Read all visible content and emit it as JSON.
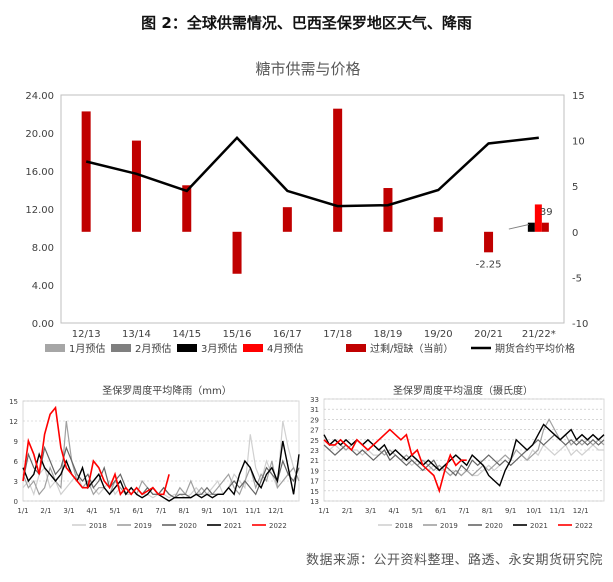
{
  "figure_title": "图 2：全球供需情况、巴西圣保罗地区天气、降雨",
  "source_note": "数据来源：公开资料整理、路透、永安期货研究院",
  "colors": {
    "dark_red": "#c00000",
    "red": "#ff0000",
    "black": "#000000",
    "gray1": "#a6a6a6",
    "gray2": "#7f7f7f",
    "light": "#d0d0d0",
    "mid": "#a0a0a0",
    "dark": "#666666"
  },
  "chart_data": [
    {
      "type": "bar",
      "title": "糖市供需与价格",
      "categories": [
        "12/13",
        "13/14",
        "14/15",
        "15/16",
        "16/17",
        "17/18",
        "18/19",
        "19/20",
        "20/21",
        "21/22*"
      ],
      "left_axis": {
        "ticks": [
          "0.00",
          "4.00",
          "8.00",
          "12.00",
          "16.00",
          "20.00",
          "24.00"
        ],
        "ylim": [
          0,
          24
        ]
      },
      "right_axis": {
        "ticks": [
          "-10",
          "-5",
          "0",
          "5",
          "10",
          "15"
        ],
        "ylim": [
          -10,
          15
        ]
      },
      "legend": [
        "1月预估",
        "2月预估",
        "3月预估",
        "4月预估",
        "过剩/短缺（当前）",
        "期货合约平均价格"
      ],
      "series": [
        {
          "name": "过剩/短缺（当前）",
          "axis": "right",
          "values": [
            13.2,
            10.0,
            5.1,
            -4.6,
            2.7,
            13.5,
            4.8,
            1.6,
            -2.25,
            null
          ]
        },
        {
          "name": "期货合约平均价格",
          "axis": "left",
          "values": [
            17.0,
            15.7,
            13.9,
            19.5,
            13.9,
            12.3,
            12.4,
            14.0,
            18.9,
            19.5
          ]
        },
        {
          "name": "1月预估",
          "axis": "right",
          "values": [
            null,
            null,
            null,
            null,
            null,
            null,
            null,
            null,
            null,
            null
          ]
        },
        {
          "name": "2月预估",
          "axis": "right",
          "values": [
            null,
            null,
            null,
            null,
            null,
            null,
            null,
            null,
            null,
            null
          ]
        },
        {
          "name": "3月预估",
          "axis": "right",
          "values": [
            null,
            null,
            null,
            null,
            null,
            null,
            null,
            null,
            null,
            1.0
          ]
        },
        {
          "name": "4月预估",
          "axis": "right",
          "values": [
            null,
            null,
            null,
            null,
            null,
            null,
            null,
            null,
            null,
            3.0
          ]
        },
        {
          "name": "extra-darkred",
          "axis": "right",
          "values": [
            null,
            null,
            null,
            null,
            null,
            null,
            null,
            null,
            null,
            1.0
          ]
        }
      ],
      "annotations": [
        {
          "text": "-2.25",
          "category": "20/21"
        },
        {
          "text": "39",
          "category": "21/22*"
        }
      ]
    },
    {
      "type": "line",
      "title": "圣保罗周度平均降雨（mm）",
      "x_ticks": [
        "1/1",
        "2/1",
        "3/1",
        "4/1",
        "5/1",
        "6/1",
        "7/1",
        "8/1",
        "9/1",
        "10/1",
        "11/1",
        "12/1"
      ],
      "y_ticks": [
        "0",
        "3",
        "6",
        "9",
        "12",
        "15"
      ],
      "ylim": [
        0,
        15
      ],
      "legend": [
        "2018",
        "2019",
        "2020",
        "2021",
        "2022"
      ],
      "series": [
        {
          "name": "2018",
          "values": [
            2,
            3,
            1,
            4,
            5,
            2,
            3,
            1,
            2,
            3,
            4,
            2,
            3,
            2,
            1,
            2,
            3,
            1,
            2,
            1,
            1,
            2,
            1,
            1,
            0.5,
            1,
            1,
            0.5,
            1,
            1,
            0.5,
            1,
            2,
            1,
            1,
            2,
            3,
            1,
            2,
            4,
            3,
            2,
            10,
            5,
            3,
            6,
            4,
            2,
            12,
            8,
            5,
            3
          ]
        },
        {
          "name": "2019",
          "values": [
            4,
            2,
            3,
            1,
            2,
            5,
            3,
            2,
            12,
            6,
            3,
            2,
            3,
            1,
            2,
            2,
            1,
            3,
            2,
            1,
            2,
            1,
            3,
            2,
            1,
            1,
            2,
            1,
            0.5,
            2,
            1,
            3,
            1,
            2,
            1,
            1,
            2,
            3,
            4,
            2,
            1,
            3,
            5,
            2,
            4,
            3,
            6,
            2,
            3,
            4,
            5,
            3
          ]
        },
        {
          "name": "2020",
          "values": [
            3,
            7,
            5,
            4,
            8,
            6,
            4,
            5,
            8,
            6,
            4,
            3,
            4,
            2,
            3,
            5,
            2,
            3,
            4,
            2,
            1,
            2,
            1,
            2,
            1,
            1,
            2,
            1,
            0.5,
            1,
            1,
            0.5,
            1,
            1,
            2,
            1,
            1,
            1,
            2,
            3,
            2,
            3,
            2,
            1,
            3,
            5,
            4,
            3,
            6,
            4,
            3,
            5
          ]
        },
        {
          "name": "2021",
          "values": [
            5,
            3,
            4,
            7,
            5,
            4,
            3,
            4,
            6,
            4,
            3,
            5,
            2,
            3,
            4,
            2,
            1,
            2,
            3,
            1,
            2,
            1,
            0.5,
            1,
            2,
            1,
            0.5,
            0,
            0.5,
            0.5,
            0.5,
            0.5,
            1,
            0.5,
            1,
            0.5,
            1,
            1,
            2,
            1,
            4,
            6,
            5,
            3,
            2,
            4,
            5,
            3,
            9,
            5,
            1,
            7
          ]
        },
        {
          "name": "2022",
          "values": [
            3,
            9,
            7,
            4,
            10,
            13,
            14,
            8,
            5,
            4,
            3,
            2,
            2,
            6,
            5,
            3,
            2,
            4,
            1,
            2,
            1,
            2,
            1,
            1.5,
            2,
            1,
            1,
            4
          ]
        }
      ]
    },
    {
      "type": "line",
      "title": "圣保罗周度平均温度（摄氏度）",
      "x_ticks": [
        "1/1",
        "2/1",
        "3/1",
        "4/1",
        "5/1",
        "6/1",
        "7/1",
        "8/1",
        "9/1",
        "10/1",
        "11/1",
        "12/1"
      ],
      "y_ticks": [
        "13",
        "15",
        "17",
        "19",
        "21",
        "23",
        "25",
        "27",
        "29",
        "31",
        "33"
      ],
      "ylim": [
        13,
        33
      ],
      "legend": [
        "2018",
        "2019",
        "2020",
        "2021",
        "2022"
      ],
      "series": [
        {
          "name": "2018",
          "values": [
            24,
            23,
            24,
            23,
            24,
            23,
            23,
            22,
            23,
            22,
            22,
            23,
            21,
            22,
            21,
            21,
            20,
            21,
            20,
            19,
            20,
            19,
            19,
            18,
            19,
            18,
            19,
            18,
            18,
            19,
            20,
            19,
            20,
            21,
            20,
            21,
            22,
            21,
            23,
            22,
            24,
            23,
            22,
            23,
            24,
            22,
            23,
            22,
            23,
            24,
            23,
            23
          ]
        },
        {
          "name": "2019",
          "values": [
            25,
            24,
            25,
            24,
            23,
            24,
            25,
            24,
            23,
            24,
            23,
            22,
            23,
            22,
            21,
            22,
            21,
            20,
            21,
            20,
            19,
            20,
            19,
            18,
            19,
            18,
            19,
            18,
            19,
            20,
            19,
            20,
            21,
            22,
            21,
            23,
            22,
            21,
            22,
            23,
            27,
            29,
            27,
            25,
            26,
            24,
            25,
            24,
            25,
            24,
            25,
            24
          ]
        },
        {
          "name": "2020",
          "values": [
            24,
            23,
            22,
            23,
            24,
            23,
            22,
            23,
            22,
            21,
            22,
            23,
            21,
            22,
            21,
            20,
            21,
            20,
            19,
            20,
            21,
            19,
            20,
            19,
            18,
            20,
            19,
            21,
            20,
            21,
            22,
            21,
            20,
            21,
            20,
            21,
            22,
            23,
            24,
            25,
            24,
            25,
            26,
            25,
            24,
            25,
            24,
            25,
            24,
            25,
            24,
            25
          ]
        },
        {
          "name": "2021",
          "values": [
            26,
            24,
            25,
            24,
            25,
            24,
            25,
            24,
            25,
            24,
            23,
            24,
            22,
            23,
            22,
            21,
            22,
            21,
            20,
            21,
            20,
            19,
            20,
            21,
            22,
            21,
            20,
            22,
            21,
            20,
            18,
            17,
            16,
            19,
            21,
            25,
            24,
            23,
            24,
            26,
            28,
            27,
            26,
            25,
            26,
            27,
            25,
            26,
            25,
            26,
            25,
            26
          ]
        },
        {
          "name": "2022",
          "values": [
            25,
            24,
            24,
            25,
            24,
            23,
            25,
            24,
            23,
            24,
            25,
            26,
            27,
            26,
            25,
            26,
            22,
            23,
            20,
            19,
            18,
            15,
            19,
            22,
            20,
            21,
            21
          ]
        }
      ]
    }
  ]
}
